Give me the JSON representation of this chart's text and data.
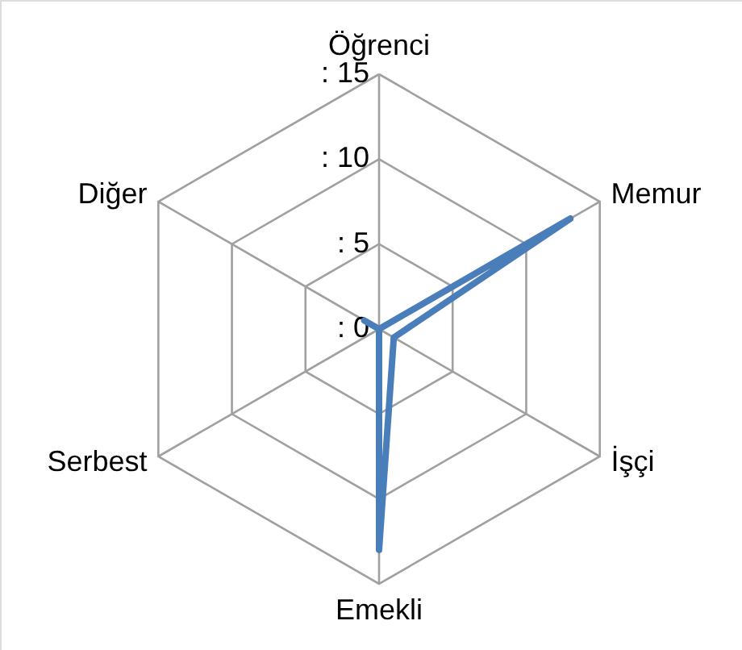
{
  "chart_data": {
    "type": "radar",
    "categories": [
      "Öğrenci",
      "Memur",
      "İşçi",
      "Emekli",
      "Serbest",
      "Diğer"
    ],
    "series": [
      {
        "color": "#4a7ebb",
        "values": [
          0,
          13,
          1,
          13,
          0,
          1
        ]
      }
    ],
    "ylim": [
      0,
      15
    ],
    "yticks": [
      {
        "value": 0,
        "label": ": 0"
      },
      {
        "value": 5,
        "label": ": 5"
      },
      {
        "value": 10,
        "label": ": 10"
      },
      {
        "value": 15,
        "label": ": 15"
      }
    ],
    "grid": true,
    "marker": "none",
    "line_style": "solid"
  }
}
